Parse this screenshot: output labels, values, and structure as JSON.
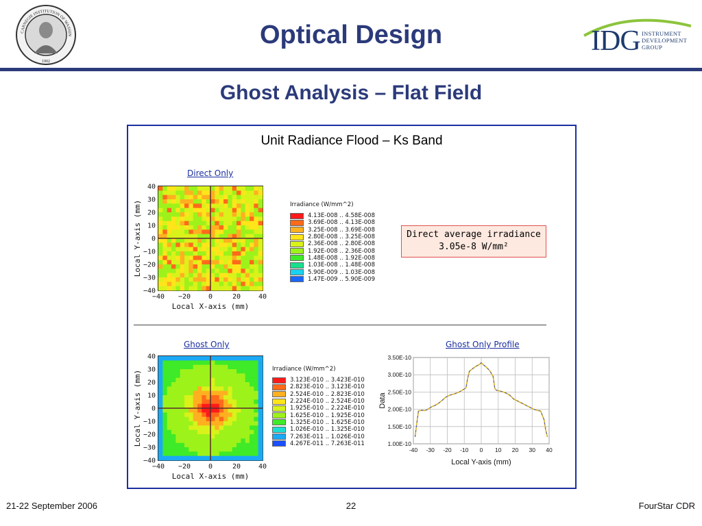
{
  "header": {
    "title": "Optical Design",
    "subtitle": "Ghost Analysis – Flat Field",
    "seal_text": "CARNEGIE INSTITUTION OF WASHINGTON",
    "seal_year": "1902",
    "logo_mark": "IDG",
    "logo_text_1": "INSTRUMENT",
    "logo_text_2": "DEVELOPMENT",
    "logo_text_3": "GROUP"
  },
  "panel": {
    "title": "Unit Radiance Flood – Ks Band",
    "callout_line1": "Direct average irradiance",
    "callout_line2": "3.05e-8 W/mm²"
  },
  "chart_data": [
    {
      "type": "heatmap",
      "title": "Direct Only",
      "xlabel": "Local X-axis (mm)",
      "ylabel": "Local Y-axis (mm)",
      "xlim": [
        -40,
        40
      ],
      "ylim": [
        -40,
        40
      ],
      "xticks": [
        "−40",
        "−20",
        "0",
        "20",
        "40"
      ],
      "yticks": [
        "40",
        "30",
        "20",
        "10",
        "0",
        "−10",
        "−20",
        "−30",
        "−40"
      ],
      "colorbar_title": "Irradiance (W/mm^2)",
      "colorbar": [
        {
          "range": "4.13E-008 .. 4.58E-008",
          "color": "#ff1a1a"
        },
        {
          "range": "3.69E-008 .. 4.13E-008",
          "color": "#ff6a1a"
        },
        {
          "range": "3.25E-008 .. 3.69E-008",
          "color": "#ffb020"
        },
        {
          "range": "2.80E-008 .. 3.25E-008",
          "color": "#ffe51a"
        },
        {
          "range": "2.36E-008 .. 2.80E-008",
          "color": "#d9f21a"
        },
        {
          "range": "1.92E-008 .. 2.36E-008",
          "color": "#9df21a"
        },
        {
          "range": "1.48E-008 .. 1.92E-008",
          "color": "#3fea28"
        },
        {
          "range": "1.03E-008 .. 1.48E-008",
          "color": "#1adf8c"
        },
        {
          "range": "5.90E-009 .. 1.03E-008",
          "color": "#1ad2f0"
        },
        {
          "range": "1.47E-009 .. 5.90E-009",
          "color": "#1a66ff"
        }
      ]
    },
    {
      "type": "heatmap",
      "title": "Ghost Only",
      "xlabel": "Local X-axis (mm)",
      "ylabel": "Local Y-axis (mm)",
      "xlim": [
        -40,
        40
      ],
      "ylim": [
        -40,
        40
      ],
      "xticks": [
        "−40",
        "−20",
        "0",
        "20",
        "40"
      ],
      "yticks": [
        "40",
        "30",
        "20",
        "10",
        "0",
        "−10",
        "−20",
        "−30",
        "−40"
      ],
      "colorbar_title": "Irradiance (W/mm^2)",
      "colorbar": [
        {
          "range": "3.123E-010 .. 3.423E-010",
          "color": "#ff1a1a"
        },
        {
          "range": "2.823E-010 .. 3.123E-010",
          "color": "#ff6a1a"
        },
        {
          "range": "2.524E-010 .. 2.823E-010",
          "color": "#ffb020"
        },
        {
          "range": "2.224E-010 .. 2.524E-010",
          "color": "#ffe51a"
        },
        {
          "range": "1.925E-010 .. 2.224E-010",
          "color": "#d9f21a"
        },
        {
          "range": "1.625E-010 .. 1.925E-010",
          "color": "#9df21a"
        },
        {
          "range": "1.325E-010 .. 1.625E-010",
          "color": "#3fea28"
        },
        {
          "range": "1.026E-010 .. 1.325E-010",
          "color": "#1adfd2"
        },
        {
          "range": "7.263E-011 .. 1.026E-010",
          "color": "#1aaaf5"
        },
        {
          "range": "4.267E-011 .. 7.263E-011",
          "color": "#1a50ff"
        }
      ]
    },
    {
      "type": "line",
      "title": "Ghost Only Profile",
      "xlabel": "Local Y-axis (mm)",
      "ylabel": "Data",
      "xlim": [
        -40,
        40
      ],
      "ylim": [
        1e-10,
        3.5e-10
      ],
      "xticks": [
        "-40",
        "-30",
        "-20",
        "-10",
        "0",
        "10",
        "20",
        "30",
        "40"
      ],
      "yticks": [
        "3.50E-10",
        "3.00E-10",
        "2.50E-10",
        "2.00E-10",
        "1.50E-10",
        "1.00E-10"
      ],
      "x": [
        -39,
        -38,
        -37,
        -35,
        -33,
        -31,
        -29,
        -27,
        -25,
        -23,
        -21,
        -19,
        -17,
        -15,
        -13,
        -11,
        -9,
        -8,
        -7,
        -5,
        -3,
        -1,
        0,
        1,
        3,
        5,
        7,
        8,
        9,
        11,
        13,
        15,
        17,
        19,
        21,
        23,
        25,
        27,
        29,
        31,
        33,
        35,
        37,
        38,
        39
      ],
      "values": [
        1.2e-10,
        1.6e-10,
        1.95e-10,
        1.97e-10,
        1.96e-10,
        2.02e-10,
        2.08e-10,
        2.12e-10,
        2.18e-10,
        2.26e-10,
        2.35e-10,
        2.4e-10,
        2.43e-10,
        2.46e-10,
        2.5e-10,
        2.56e-10,
        2.62e-10,
        2.9e-10,
        3.1e-10,
        3.18e-10,
        3.25e-10,
        3.3e-10,
        3.35e-10,
        3.3e-10,
        3.22e-10,
        3.12e-10,
        2.95e-10,
        2.6e-10,
        2.55e-10,
        2.53e-10,
        2.5e-10,
        2.46e-10,
        2.4e-10,
        2.3e-10,
        2.25e-10,
        2.2e-10,
        2.15e-10,
        2.1e-10,
        2.05e-10,
        2e-10,
        1.97e-10,
        1.95e-10,
        1.7e-10,
        1.4e-10,
        1.2e-10
      ]
    }
  ],
  "footer": {
    "date": "21-22 September 2006",
    "page": "22",
    "project": "FourStar CDR"
  },
  "colors": {
    "title": "#2b3a7a",
    "panel_border": "#1b2fa0",
    "callout_bg": "#fde9df",
    "callout_border": "#e05050"
  }
}
